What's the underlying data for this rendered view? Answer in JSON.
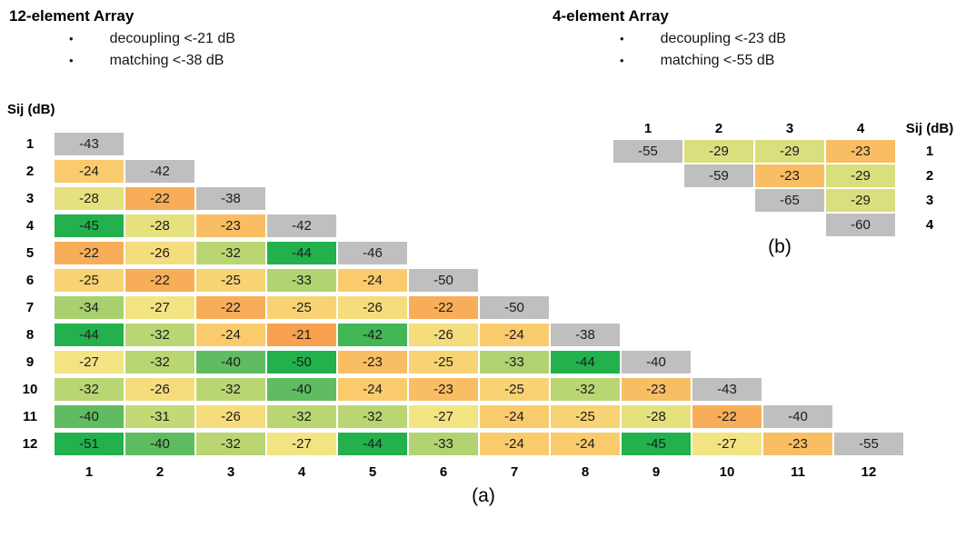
{
  "colors": {
    "background": "#ffffff",
    "diagonal": "#BFBFBF",
    "cell_text": "#1c1c1c",
    "scale_stops": [
      {
        "v": -21,
        "c": "#F7A04E"
      },
      {
        "v": -24,
        "c": "#FACB6D"
      },
      {
        "v": -27,
        "c": "#F3E483"
      },
      {
        "v": -30,
        "c": "#CCDC78"
      },
      {
        "v": -34,
        "c": "#A8D06E"
      },
      {
        "v": -40,
        "c": "#5FBC60"
      },
      {
        "v": -44,
        "c": "#22B14C"
      }
    ]
  },
  "chart_data": [
    {
      "type": "heatmap",
      "title": "12-element Array",
      "annotations": [
        "decoupling <-21 dB",
        "matching <-38 dB"
      ],
      "value_label": "Sij (dB)",
      "caption": "(a)",
      "triangular": "lower",
      "diagonal_meaning": "matching (gray cells)",
      "x_labels": [
        "1",
        "2",
        "3",
        "4",
        "5",
        "6",
        "7",
        "8",
        "9",
        "10",
        "11",
        "12"
      ],
      "y_labels": [
        "1",
        "2",
        "3",
        "4",
        "5",
        "6",
        "7",
        "8",
        "9",
        "10",
        "11",
        "12"
      ],
      "rows": [
        [
          -43
        ],
        [
          -24,
          -42
        ],
        [
          -28,
          -22,
          -38
        ],
        [
          -45,
          -28,
          -23,
          -42
        ],
        [
          -22,
          -26,
          -32,
          -44,
          -46
        ],
        [
          -25,
          -22,
          -25,
          -33,
          -24,
          -50
        ],
        [
          -34,
          -27,
          -22,
          -25,
          -26,
          -22,
          -50
        ],
        [
          -44,
          -32,
          -24,
          -21,
          -42,
          -26,
          -24,
          -38
        ],
        [
          -27,
          -32,
          -40,
          -50,
          -23,
          -25,
          -33,
          -44,
          -40
        ],
        [
          -32,
          -26,
          -32,
          -40,
          -24,
          -23,
          -25,
          -32,
          -23,
          -43
        ],
        [
          -40,
          -31,
          -26,
          -32,
          -32,
          -27,
          -24,
          -25,
          -28,
          -22,
          -40
        ],
        [
          -51,
          -40,
          -32,
          -27,
          -44,
          -33,
          -24,
          -24,
          -45,
          -27,
          -23,
          -55
        ]
      ]
    },
    {
      "type": "heatmap",
      "title": "4-element Array",
      "annotations": [
        "decoupling <-23 dB",
        "matching <-55 dB"
      ],
      "value_label": "Sij (dB)",
      "caption": "(b)",
      "triangular": "upper",
      "diagonal_meaning": "matching (gray cells)",
      "x_labels": [
        "1",
        "2",
        "3",
        "4"
      ],
      "y_labels": [
        "1",
        "2",
        "3",
        "4"
      ],
      "rows": [
        [
          -55,
          -29,
          -29,
          -23
        ],
        [
          -59,
          -23,
          -29
        ],
        [
          -65,
          -29
        ],
        [
          -60
        ]
      ]
    }
  ]
}
